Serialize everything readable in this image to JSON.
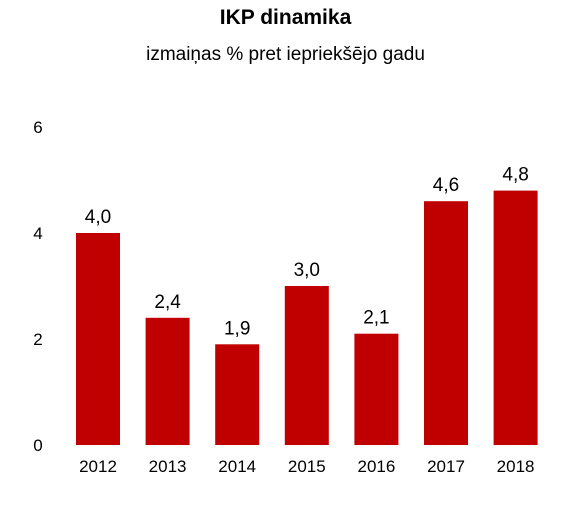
{
  "chart_data": {
    "type": "bar",
    "title": "IKP dinamika",
    "subtitle": "izmaiņas % pret iepriekšējo gadu",
    "categories": [
      "2012",
      "2013",
      "2014",
      "2015",
      "2016",
      "2017",
      "2018"
    ],
    "values": [
      4.0,
      2.4,
      1.9,
      3.0,
      2.1,
      4.6,
      4.8
    ],
    "data_labels": [
      "4,0",
      "2,4",
      "1,9",
      "3,0",
      "2,1",
      "4,6",
      "4,8"
    ],
    "y_ticks": [
      "0",
      "2",
      "4",
      "6"
    ],
    "ylim": [
      0,
      6
    ],
    "xlabel": "",
    "ylabel": "",
    "grid": false,
    "bar_color": "#c00000"
  }
}
